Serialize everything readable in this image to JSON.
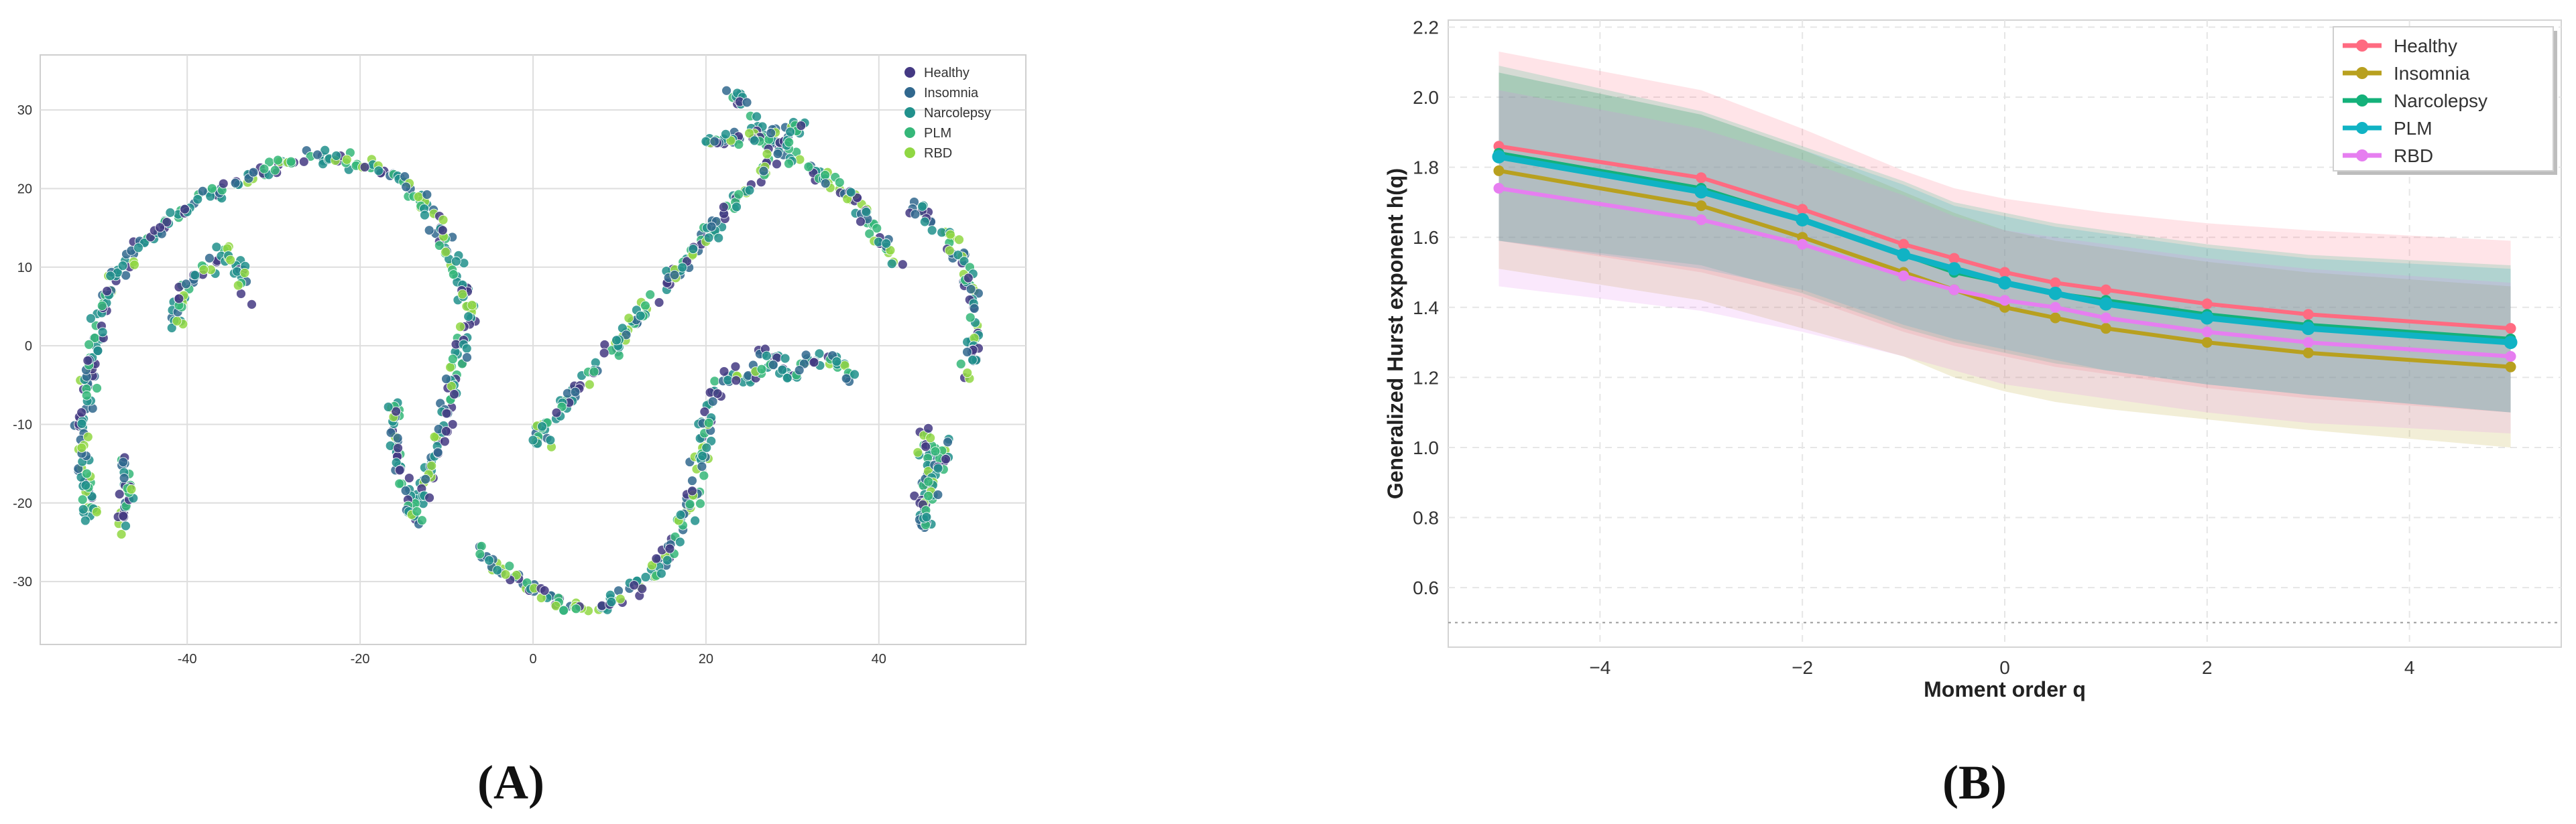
{
  "panel_labels": {
    "a": "(A)",
    "b": "(B)"
  },
  "colors": {
    "healthy_a": "#443983",
    "insomnia_a": "#31688e",
    "narcolepsy_a": "#21918c",
    "plm_a": "#35b779",
    "rbd_a": "#90d743",
    "healthy_b": "#ff6b81",
    "insomnia_b": "#b8a01f",
    "narcolepsy_b": "#14b17a",
    "plm_b": "#10b3c4",
    "rbd_b": "#e67ef0"
  },
  "chart_data": [
    {
      "type": "scatter",
      "title": "",
      "xlabel": "",
      "ylabel": "",
      "xlim": [
        -57,
        57
      ],
      "ylim": [
        -38,
        37
      ],
      "x_ticks": [
        "-40",
        "-20",
        "0",
        "20",
        "40"
      ],
      "y_ticks": [
        "30",
        "20",
        "10",
        "0",
        "-10",
        "-20",
        "-30"
      ],
      "x_tick_values": [
        -40,
        -20,
        0,
        20,
        40
      ],
      "y_tick_values": [
        30,
        20,
        10,
        0,
        -10,
        -20,
        -30
      ],
      "grid": true,
      "legend_position": "top-right",
      "legend": [
        "Healthy",
        "Insomnia",
        "Narcolepsy",
        "PLM",
        "RBD"
      ],
      "clusters": [
        {
          "name": "left arc",
          "points": [
            [
              -51,
              -23
            ],
            [
              -52,
              -15
            ],
            [
              -52,
              -8
            ],
            [
              -51,
              -2
            ],
            [
              -50,
              4
            ],
            [
              -48,
              9
            ],
            [
              -45,
              13
            ],
            [
              -41,
              17
            ],
            [
              -36,
              20
            ],
            [
              -31,
              22
            ],
            [
              -27,
              24
            ],
            [
              -23,
              24
            ],
            [
              -19,
              23
            ],
            [
              -15,
              21
            ],
            [
              -12,
              17
            ],
            [
              -10,
              12
            ],
            [
              -8,
              7
            ],
            [
              -7,
              3
            ]
          ]
        },
        {
          "name": "left tail",
          "points": [
            [
              -48,
              -24
            ],
            [
              -47,
              -20
            ],
            [
              -47,
              -14
            ]
          ]
        },
        {
          "name": "inner group",
          "points": [
            [
              -42,
              2
            ],
            [
              -40,
              8
            ],
            [
              -36,
              12
            ],
            [
              -34,
              10
            ],
            [
              -33,
              6
            ]
          ]
        },
        {
          "name": "middle column",
          "points": [
            [
              -8,
              2
            ],
            [
              -9,
              -4
            ],
            [
              -10,
              -9
            ],
            [
              -11,
              -13
            ],
            [
              -12,
              -17
            ],
            [
              -13,
              -20
            ]
          ]
        },
        {
          "name": "left arm",
          "points": [
            [
              -16,
              -7
            ],
            [
              -16,
              -12
            ],
            [
              -15,
              -17
            ],
            [
              -14,
              -21
            ],
            [
              -13,
              -23
            ]
          ]
        },
        {
          "name": "bottom arc",
          "points": [
            [
              -6,
              -26
            ],
            [
              -3,
              -29
            ],
            [
              0,
              -31
            ],
            [
              4,
              -33
            ],
            [
              8,
              -33
            ],
            [
              11,
              -31
            ],
            [
              14,
              -29
            ],
            [
              16,
              -26
            ],
            [
              18,
              -21
            ],
            [
              19,
              -16
            ],
            [
              20,
              -11
            ],
            [
              21,
              -6
            ],
            [
              22,
              -4
            ],
            [
              25,
              -4
            ],
            [
              28,
              -2
            ]
          ]
        },
        {
          "name": "right branch",
          "points": [
            [
              26,
              0
            ],
            [
              28,
              -2
            ],
            [
              30,
              -4
            ],
            [
              32,
              -2
            ],
            [
              34,
              -1
            ],
            [
              36,
              -3
            ],
            [
              37,
              -5
            ]
          ]
        },
        {
          "name": "top right arc",
          "points": [
            [
              23,
              32
            ],
            [
              25,
              29
            ],
            [
              27,
              26
            ],
            [
              30,
              24
            ],
            [
              33,
              22
            ],
            [
              36,
              20
            ],
            [
              38,
              17
            ],
            [
              40,
              14
            ],
            [
              42,
              10
            ]
          ]
        },
        {
          "name": "right arc",
          "points": [
            [
              44,
              18
            ],
            [
              46,
              16
            ],
            [
              48,
              14
            ],
            [
              50,
              10
            ],
            [
              51,
              5
            ],
            [
              51,
              0
            ],
            [
              50,
              -4
            ]
          ]
        },
        {
          "name": "right tail",
          "points": [
            [
              45,
              -10
            ],
            [
              46,
              -15
            ],
            [
              45,
              -19
            ],
            [
              45,
              -23
            ],
            [
              47,
              -16
            ],
            [
              48,
              -12
            ]
          ]
        },
        {
          "name": "loners",
          "points": [
            [
              20,
              26
            ],
            [
              21,
              26
            ],
            [
              31,
              28
            ],
            [
              0,
              -12
            ],
            [
              2,
              -12
            ]
          ]
        }
      ]
    },
    {
      "type": "line",
      "title": "",
      "xlabel": "Moment order q",
      "ylabel": "Generalized Hurst exponent h(q)",
      "xlim": [
        -5.5,
        5.5
      ],
      "ylim": [
        0.43,
        2.22
      ],
      "x_ticks": [
        "−4",
        "−2",
        "0",
        "2",
        "4"
      ],
      "y_ticks": [
        "2.2",
        "2.0",
        "1.8",
        "1.6",
        "1.4",
        "1.2",
        "1.0",
        "0.8",
        "0.6"
      ],
      "x_tick_values": [
        -4,
        -2,
        0,
        2,
        4
      ],
      "y_tick_values": [
        2.2,
        2.0,
        1.8,
        1.6,
        1.4,
        1.2,
        1.0,
        0.8,
        0.6
      ],
      "reference_line": 0.5,
      "grid": true,
      "legend_position": "top-right",
      "x": [
        -5,
        -3,
        -2,
        -1,
        -0.5,
        0,
        0.5,
        1,
        2,
        3,
        5
      ],
      "series": [
        {
          "name": "Healthy",
          "values": [
            1.86,
            1.77,
            1.68,
            1.58,
            1.54,
            1.5,
            1.47,
            1.45,
            1.41,
            1.38,
            1.34
          ],
          "upper": [
            2.13,
            2.02,
            1.91,
            1.79,
            1.74,
            1.71,
            1.69,
            1.67,
            1.64,
            1.62,
            1.59
          ],
          "lower": [
            1.59,
            1.5,
            1.43,
            1.33,
            1.29,
            1.26,
            1.23,
            1.21,
            1.17,
            1.14,
            1.1
          ]
        },
        {
          "name": "Insomnia",
          "values": [
            1.79,
            1.69,
            1.6,
            1.5,
            1.45,
            1.4,
            1.37,
            1.34,
            1.3,
            1.27,
            1.23
          ],
          "upper": [
            2.07,
            1.95,
            1.85,
            1.73,
            1.67,
            1.62,
            1.59,
            1.57,
            1.53,
            1.5,
            1.46
          ],
          "lower": [
            1.51,
            1.42,
            1.34,
            1.26,
            1.2,
            1.16,
            1.13,
            1.11,
            1.08,
            1.05,
            1.0
          ]
        },
        {
          "name": "Narcolepsy",
          "values": [
            1.84,
            1.74,
            1.65,
            1.55,
            1.5,
            1.47,
            1.44,
            1.42,
            1.38,
            1.35,
            1.31
          ],
          "upper": [
            2.09,
            1.96,
            1.86,
            1.76,
            1.7,
            1.67,
            1.64,
            1.62,
            1.58,
            1.55,
            1.52
          ],
          "lower": [
            1.59,
            1.52,
            1.44,
            1.34,
            1.3,
            1.27,
            1.24,
            1.22,
            1.18,
            1.15,
            1.1
          ]
        },
        {
          "name": "PLM",
          "values": [
            1.83,
            1.73,
            1.65,
            1.55,
            1.51,
            1.47,
            1.44,
            1.41,
            1.37,
            1.34,
            1.3
          ],
          "upper": [
            2.07,
            1.95,
            1.85,
            1.75,
            1.69,
            1.66,
            1.63,
            1.61,
            1.57,
            1.54,
            1.51
          ],
          "lower": [
            1.59,
            1.51,
            1.45,
            1.35,
            1.31,
            1.28,
            1.25,
            1.22,
            1.18,
            1.15,
            1.1
          ]
        },
        {
          "name": "RBD",
          "values": [
            1.74,
            1.65,
            1.58,
            1.49,
            1.45,
            1.42,
            1.4,
            1.37,
            1.33,
            1.3,
            1.26
          ],
          "upper": [
            2.02,
            1.91,
            1.82,
            1.72,
            1.66,
            1.62,
            1.6,
            1.58,
            1.54,
            1.51,
            1.47
          ],
          "lower": [
            1.46,
            1.39,
            1.33,
            1.26,
            1.22,
            1.18,
            1.16,
            1.14,
            1.1,
            1.07,
            1.04
          ]
        }
      ]
    }
  ]
}
